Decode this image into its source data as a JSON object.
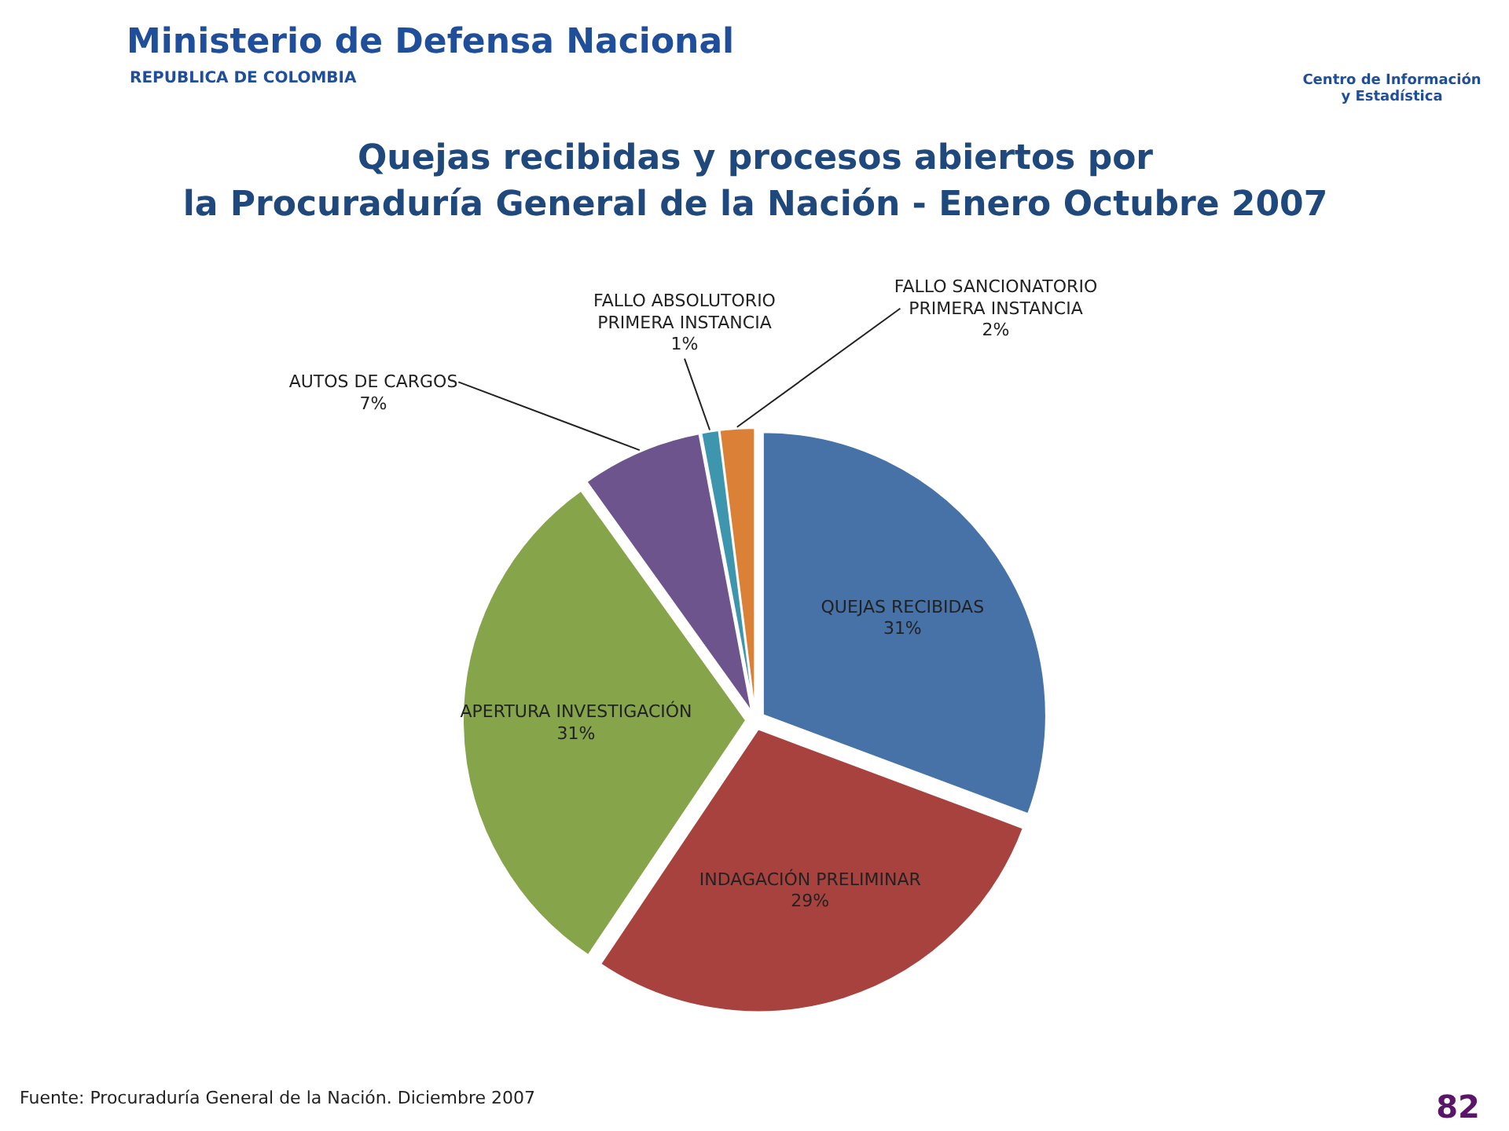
{
  "chart_data": {
    "type": "pie",
    "title": "Quejas recibidas y procesos abiertos por\nla Procuraduría General de la Nación - Enero Octubre 2007",
    "categories": [
      "QUEJAS RECIBIDAS",
      "INDAGACIÓN PRELIMINAR",
      "APERTURA INVESTIGACIÓN",
      "AUTOS DE CARGOS",
      "FALLO ABSOLUTORIO PRIMERA INSTANCIA",
      "FALLO SANCIONATORIO PRIMERA INSTANCIA"
    ],
    "values": [
      31,
      29,
      31,
      7,
      1,
      2
    ],
    "value_labels": [
      "31%",
      "29%",
      "31%",
      "7%",
      "1%",
      "2%"
    ],
    "colors": [
      "#4672a8",
      "#a8423f",
      "#86a44a",
      "#6e548d",
      "#3d96ae",
      "#da8137"
    ],
    "annotations": [
      "Ministerio de Defensa Nacional",
      "REPUBLICA DE COLOMBIA",
      "Centro de Información\ny Estadística",
      "Fuente: Procuraduría General de la Nación. Diciembre 2007",
      "82"
    ]
  }
}
